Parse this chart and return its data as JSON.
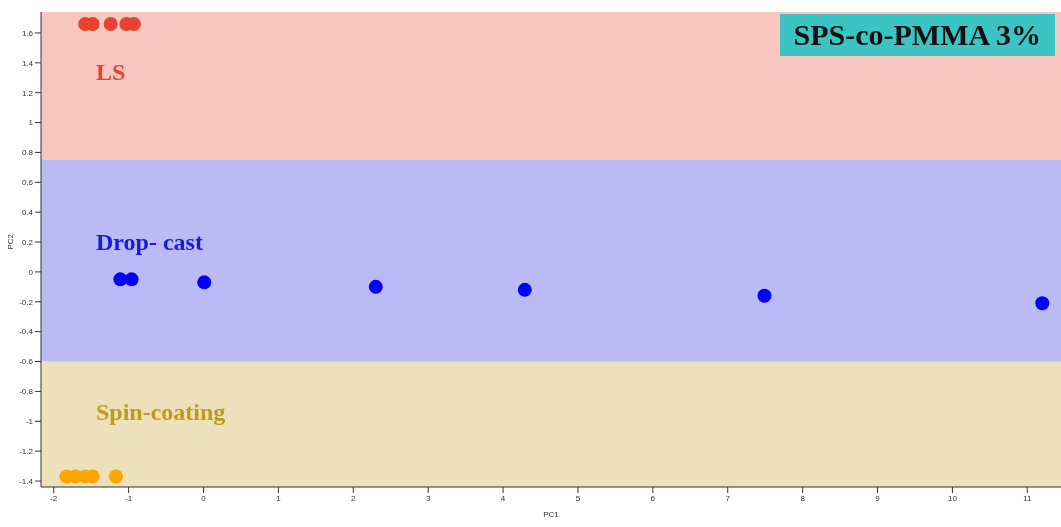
{
  "chart_data": {
    "type": "scatter",
    "title": "SPS-co-PMMA 3%",
    "xlabel": "PC1",
    "ylabel": "PC2",
    "series": [
      {
        "color": "#e8432e",
        "x": [
          -1.58,
          -1.48,
          -1.24,
          -1.03,
          -0.93
        ],
        "values": [
          1.66,
          1.66,
          1.66,
          1.66,
          1.66
        ]
      },
      {
        "color": "#0000ff",
        "x": [
          -1.11,
          -0.96,
          0.01,
          2.3,
          4.29,
          7.49,
          11.2
        ],
        "values": [
          -0.05,
          -0.05,
          -0.07,
          -0.1,
          -0.12,
          -0.16,
          -0.21
        ]
      },
      {
        "color": "#ffa500",
        "x": [
          -1.83,
          -1.71,
          -1.58,
          -1.48,
          -1.17
        ],
        "values": [
          -1.37,
          -1.37,
          -1.37,
          -1.37,
          -1.37
        ]
      }
    ],
    "bands": [
      {
        "axis": "y",
        "from": 0.75,
        "to": 1.74,
        "label": "LS",
        "color": "#e8432e"
      },
      {
        "axis": "y",
        "from": -0.6,
        "to": 0.75,
        "label": "Drop- cast",
        "color": "#1a1adb"
      },
      {
        "axis": "y",
        "from": -1.44,
        "to": -0.6,
        "label": "Spin-coating",
        "color": "#c09a1a"
      }
    ],
    "marker": "circle",
    "grid": false,
    "legend": false,
    "xlim": [
      -2.17,
      11.45
    ],
    "ylim": [
      -1.44,
      1.74
    ],
    "xticks": [
      -2,
      -1,
      0,
      1,
      2,
      3,
      4,
      5,
      6,
      7,
      8,
      9,
      10,
      11
    ],
    "yticks": [
      -1.4,
      -1.2,
      -1,
      -0.8,
      -0.6,
      -0.4,
      -0.2,
      0,
      0.2,
      0.4,
      0.6,
      0.8,
      1,
      1.2,
      1.4,
      1.6
    ]
  }
}
